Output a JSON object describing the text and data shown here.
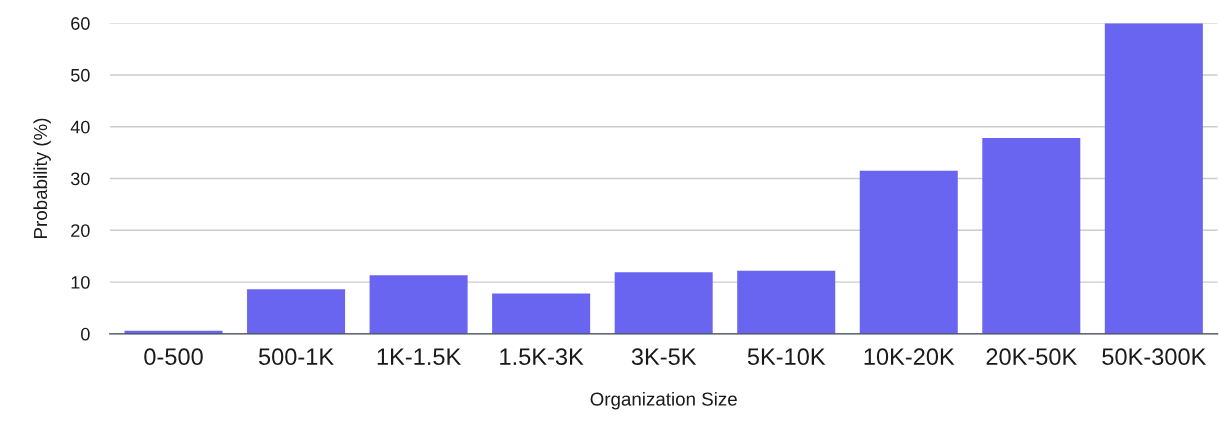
{
  "chart_data": {
    "type": "bar",
    "xlabel": "Organization Size",
    "ylabel": "Probability (%)",
    "categories": [
      "0-500",
      "500-1K",
      "1K-1.5K",
      "1.5K-3K",
      "3K-5K",
      "5K-10K",
      "10K-20K",
      "20K-50K",
      "50K-300K"
    ],
    "values": [
      0.6,
      8.6,
      11.3,
      7.8,
      11.9,
      12.2,
      31.5,
      37.8,
      60
    ],
    "color": "#6965f0",
    "ylim": [
      0,
      60
    ],
    "yticks": [
      0,
      10,
      20,
      30,
      40,
      50,
      60
    ],
    "grid": "y",
    "legend": false
  }
}
